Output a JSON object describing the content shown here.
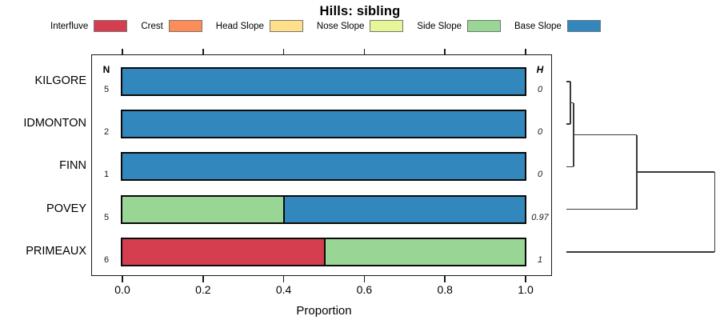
{
  "title": "Hills: sibling",
  "legend": {
    "items": [
      {
        "label": "Interfluve",
        "color": "#D53E4F"
      },
      {
        "label": "Crest",
        "color": "#FC8D59"
      },
      {
        "label": "Head Slope",
        "color": "#FEE08B"
      },
      {
        "label": "Nose Slope",
        "color": "#E6F598"
      },
      {
        "label": "Side Slope",
        "color": "#99D594"
      },
      {
        "label": "Base Slope",
        "color": "#3288BD"
      }
    ]
  },
  "chart_data": {
    "type": "bar",
    "orientation": "horizontal-stacked",
    "title": "Hills: sibling",
    "xlabel": "Proportion",
    "xlim": [
      0,
      1
    ],
    "x_ticks": [
      "0.0",
      "0.2",
      "0.4",
      "0.6",
      "0.8",
      "1.0"
    ],
    "categories": [
      "KILGORE",
      "IDMONTON",
      "FINN",
      "POVEY",
      "PRIMEAUX"
    ],
    "left_column_header": "N",
    "right_column_header": "H",
    "n_values": [
      "5",
      "2",
      "1",
      "5",
      "6"
    ],
    "h_values": [
      "0",
      "0",
      "0",
      "0.97",
      "1"
    ],
    "series": [
      {
        "name": "Interfluve",
        "color": "#D53E4F",
        "values": [
          0,
          0,
          0,
          0,
          0.5
        ]
      },
      {
        "name": "Crest",
        "color": "#FC8D59",
        "values": [
          0,
          0,
          0,
          0,
          0
        ]
      },
      {
        "name": "Head Slope",
        "color": "#FEE08B",
        "values": [
          0,
          0,
          0,
          0,
          0
        ]
      },
      {
        "name": "Nose Slope",
        "color": "#E6F598",
        "values": [
          0,
          0,
          0,
          0,
          0
        ]
      },
      {
        "name": "Side Slope",
        "color": "#99D594",
        "values": [
          0,
          0,
          0,
          0.4,
          0.5
        ]
      },
      {
        "name": "Base Slope",
        "color": "#3288BD",
        "values": [
          1,
          1,
          1,
          0.6,
          0
        ]
      }
    ],
    "dendrogram": {
      "note": "sideways dendrogram, leaves aligned to bar rows, height grows rightward",
      "merges": [
        {
          "children": [
            "leaf:0",
            "leaf:1"
          ],
          "height": 0.016
        },
        {
          "children": [
            "merge:0",
            "leaf:2"
          ],
          "height": 0.037
        },
        {
          "children": [
            "merge:1",
            "leaf:3"
          ],
          "height": 0.46
        },
        {
          "children": [
            "merge:2",
            "leaf:4"
          ],
          "height": 0.98
        }
      ]
    }
  }
}
